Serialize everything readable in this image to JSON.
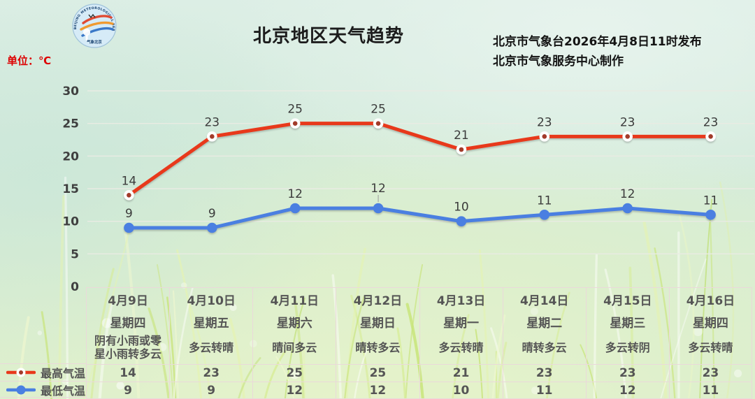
{
  "page": {
    "title": "北京地区天气趋势",
    "unit_label": "单位：℃",
    "publisher_line1": "北京市气象台2026年4月8日11时发布",
    "publisher_line2": "北京市气象服务中心制作"
  },
  "logo": {
    "arc_text_top": "BEIJING METEOROLOGICAL SERVICE",
    "arc_text_bottom": "气象北京"
  },
  "colors": {
    "max_temp_line": "#e8391b",
    "max_temp_marker_center": "#a23b2a",
    "min_temp_line": "#4a7fe1",
    "unit_label_text": "#dd0000",
    "gridline": "#e9ebe3",
    "table_border": "#ead9da",
    "table_text": "#555555"
  },
  "chart_data": {
    "type": "line",
    "title": "北京地区天气趋势",
    "categories": [
      "4月9日",
      "4月10日",
      "4月11日",
      "4月12日",
      "4月13日",
      "4月14日",
      "4月15日",
      "4月16日"
    ],
    "weekdays": [
      "星期四",
      "星期五",
      "星期六",
      "星期日",
      "星期一",
      "星期二",
      "星期三",
      "星期四"
    ],
    "weather": [
      "阴有小雨或零\n星小雨转多云",
      "多云转晴",
      "晴间多云",
      "晴转多云",
      "多云转晴",
      "晴转多云",
      "多云转阴",
      "多云转晴"
    ],
    "series": [
      {
        "name": "最高气温",
        "values": [
          14,
          23,
          25,
          25,
          21,
          23,
          23,
          23
        ],
        "color": "#e8391b",
        "marker": "white-ring-dot",
        "marker_center": "#a23b2a"
      },
      {
        "name": "最低气温",
        "values": [
          9,
          9,
          12,
          12,
          10,
          11,
          12,
          11
        ],
        "color": "#4a7fe1",
        "marker": "solid",
        "label_leader_indexes": [
          3
        ]
      }
    ],
    "ylim": [
      0,
      30
    ],
    "yticks": [
      0,
      5,
      10,
      15,
      20,
      25,
      30
    ],
    "ylabel_unit": "℃",
    "grid": true,
    "legend_position": "bottom-left"
  }
}
